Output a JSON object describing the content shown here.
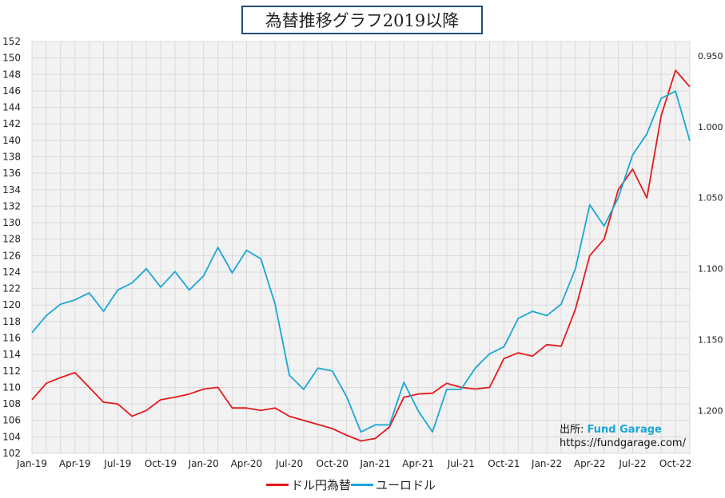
{
  "chart_data": {
    "type": "line",
    "title": "為替推移グラフ2019以降",
    "x_tick_labels": [
      "Jan-19",
      "Apr-19",
      "Jul-19",
      "Oct-19",
      "Jan-20",
      "Apr-20",
      "Jul-20",
      "Oct-20",
      "Jan-21",
      "Apr-21",
      "Jul-21",
      "Oct-21",
      "Jan-22",
      "Apr-22",
      "Jul-22",
      "Oct-22"
    ],
    "x_range": [
      "2019-01",
      "2022-11"
    ],
    "y_left": {
      "min": 102,
      "max": 152,
      "ticks": [
        "102",
        "104",
        "106",
        "108",
        "110",
        "112",
        "114",
        "116",
        "118",
        "120",
        "122",
        "124",
        "126",
        "128",
        "130",
        "132",
        "134",
        "136",
        "138",
        "140",
        "142",
        "144",
        "146",
        "148",
        "150",
        "152"
      ]
    },
    "y_right": {
      "min": 0.94,
      "max": 1.23,
      "inverted": true,
      "ticks": [
        "0.950",
        "1.000",
        "1.050",
        "1.100",
        "1.150",
        "1.200"
      ]
    },
    "grid": true,
    "legend_position": "bottom",
    "series": [
      {
        "name": "ドル円為替",
        "color": "#e31a1c",
        "axis": "left",
        "x": [
          "2019-01",
          "2019-02",
          "2019-03",
          "2019-04",
          "2019-05",
          "2019-06",
          "2019-07",
          "2019-08",
          "2019-09",
          "2019-10",
          "2019-11",
          "2019-12",
          "2020-01",
          "2020-02",
          "2020-03",
          "2020-04",
          "2020-05",
          "2020-06",
          "2020-07",
          "2020-08",
          "2020-09",
          "2020-10",
          "2020-11",
          "2020-12",
          "2021-01",
          "2021-02",
          "2021-03",
          "2021-04",
          "2021-05",
          "2021-06",
          "2021-07",
          "2021-08",
          "2021-09",
          "2021-10",
          "2021-11",
          "2021-12",
          "2022-01",
          "2022-02",
          "2022-03",
          "2022-04",
          "2022-05",
          "2022-06",
          "2022-07",
          "2022-08",
          "2022-09",
          "2022-10",
          "2022-11"
        ],
        "values": [
          108.5,
          110.5,
          111.2,
          111.8,
          110.0,
          108.2,
          108.0,
          106.5,
          107.2,
          108.5,
          108.8,
          109.2,
          109.8,
          110.0,
          107.5,
          107.5,
          107.2,
          107.5,
          106.5,
          106.0,
          105.5,
          105.0,
          104.2,
          103.5,
          103.8,
          105.2,
          108.8,
          109.2,
          109.3,
          110.5,
          110.0,
          109.8,
          110.0,
          113.5,
          114.2,
          113.8,
          115.2,
          115.0,
          119.5,
          126.0,
          128.0,
          134.0,
          136.5,
          133.0,
          143.0,
          148.5,
          146.5
        ]
      },
      {
        "name": "ユーロドル",
        "color": "#1aa7d6",
        "axis": "right",
        "x": [
          "2019-01",
          "2019-02",
          "2019-03",
          "2019-04",
          "2019-05",
          "2019-06",
          "2019-07",
          "2019-08",
          "2019-09",
          "2019-10",
          "2019-11",
          "2019-12",
          "2020-01",
          "2020-02",
          "2020-03",
          "2020-04",
          "2020-05",
          "2020-06",
          "2020-07",
          "2020-08",
          "2020-09",
          "2020-10",
          "2020-11",
          "2020-12",
          "2021-01",
          "2021-02",
          "2021-03",
          "2021-04",
          "2021-05",
          "2021-06",
          "2021-07",
          "2021-08",
          "2021-09",
          "2021-10",
          "2021-11",
          "2021-12",
          "2022-01",
          "2022-02",
          "2022-03",
          "2022-04",
          "2022-05",
          "2022-06",
          "2022-07",
          "2022-08",
          "2022-09",
          "2022-10",
          "2022-11"
        ],
        "values": [
          1.145,
          1.133,
          1.125,
          1.122,
          1.117,
          1.13,
          1.115,
          1.11,
          1.1,
          1.113,
          1.102,
          1.115,
          1.105,
          1.085,
          1.103,
          1.087,
          1.093,
          1.125,
          1.175,
          1.185,
          1.17,
          1.172,
          1.19,
          1.215,
          1.21,
          1.21,
          1.18,
          1.2,
          1.215,
          1.185,
          1.185,
          1.17,
          1.16,
          1.155,
          1.135,
          1.13,
          1.133,
          1.125,
          1.1,
          1.055,
          1.07,
          1.05,
          1.02,
          1.005,
          0.98,
          0.975,
          1.01
        ]
      }
    ],
    "source_label": "出所:",
    "source_brand": "Fund Garage",
    "source_url": "https://fundgarage.com/"
  }
}
